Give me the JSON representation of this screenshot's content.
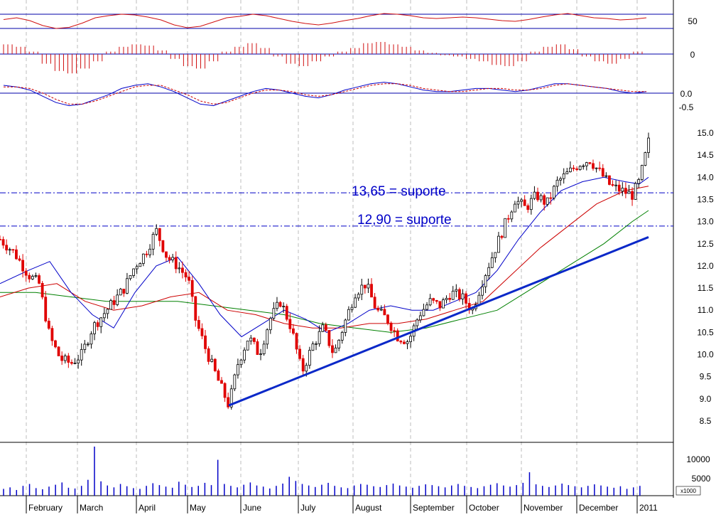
{
  "chart_data": [
    {
      "type": "line",
      "title": "",
      "ylim": [
        0,
        100
      ],
      "y_ticks": [
        "50"
      ],
      "reference_levels": [
        70,
        30
      ],
      "series": [
        {
          "values": [
            55,
            60,
            52,
            38,
            30,
            33,
            45,
            60,
            66,
            70,
            68,
            62,
            54,
            40,
            32,
            36,
            48,
            60,
            64,
            70,
            66,
            58,
            50,
            44,
            40,
            45,
            52,
            58,
            66,
            72,
            70,
            66,
            60,
            58,
            60,
            62,
            60,
            56,
            52,
            50,
            55,
            62,
            68,
            72,
            66,
            60,
            58,
            54,
            56,
            60
          ]
        }
      ]
    },
    {
      "type": "bar",
      "title": "",
      "y_ticks": [
        "0"
      ],
      "values": [
        0.8,
        0.6,
        0.2,
        -0.8,
        -1.4,
        -1.6,
        -1.2,
        -0.6,
        0.2,
        0.6,
        0.8,
        0.7,
        0.3,
        -0.4,
        -1.0,
        -1.2,
        -0.6,
        0.2,
        0.6,
        0.9,
        0.5,
        -0.2,
        -0.8,
        -1.0,
        -0.6,
        -0.2,
        0.2,
        0.5,
        0.9,
        1.0,
        0.8,
        0.6,
        0.3,
        0.1,
        -0.1,
        -0.2,
        -0.4,
        -0.6,
        -0.9,
        -1.0,
        -0.6,
        0.2,
        0.6,
        0.8,
        0.4,
        -0.2,
        -0.6,
        -0.8,
        -0.4,
        0.2
      ]
    },
    {
      "type": "line",
      "title": "",
      "y_ticks": [
        "0.0",
        "-0.5"
      ],
      "series": [
        {
          "values": [
            0.5,
            0.4,
            0.2,
            -0.2,
            -0.6,
            -0.8,
            -0.7,
            -0.4,
            -0.1,
            0.3,
            0.5,
            0.6,
            0.4,
            0.1,
            -0.3,
            -0.7,
            -0.8,
            -0.5,
            -0.2,
            0.1,
            0.3,
            0.2,
            0.0,
            -0.2,
            -0.3,
            -0.1,
            0.2,
            0.4,
            0.6,
            0.7,
            0.6,
            0.4,
            0.2,
            0.1,
            0.1,
            0.2,
            0.3,
            0.3,
            0.2,
            0.1,
            0.2,
            0.4,
            0.6,
            0.6,
            0.5,
            0.4,
            0.3,
            0.1,
            0.0,
            0.1
          ]
        },
        {
          "values": [
            0.4,
            0.4,
            0.3,
            0.0,
            -0.4,
            -0.7,
            -0.7,
            -0.5,
            -0.2,
            0.1,
            0.4,
            0.5,
            0.5,
            0.2,
            -0.1,
            -0.5,
            -0.7,
            -0.6,
            -0.3,
            0.0,
            0.2,
            0.2,
            0.1,
            -0.1,
            -0.2,
            -0.1,
            0.1,
            0.3,
            0.5,
            0.6,
            0.6,
            0.5,
            0.3,
            0.2,
            0.1,
            0.1,
            0.2,
            0.3,
            0.3,
            0.2,
            0.2,
            0.3,
            0.5,
            0.6,
            0.5,
            0.4,
            0.3,
            0.2,
            0.1,
            0.1
          ]
        }
      ]
    },
    {
      "type": "line",
      "title": "",
      "ylim": [
        8.2,
        15.2
      ],
      "y_ticks": [
        "8.5",
        "9.0",
        "9.5",
        "10.0",
        "10.5",
        "11.0",
        "11.5",
        "12.0",
        "12.5",
        "13.0",
        "13.5",
        "14.0",
        "14.5",
        "15.0"
      ],
      "support_lines": [
        {
          "value": 13.65,
          "label": "13,65 = suporte"
        },
        {
          "value": 12.9,
          "label": "12,90 = suporte"
        }
      ],
      "trendline": {
        "x": [
          0.322,
          0.913
        ],
        "y": [
          8.85,
          12.65
        ]
      },
      "price_path": [
        [
          0.0,
          12.6
        ],
        [
          0.02,
          12.3
        ],
        [
          0.04,
          11.8
        ],
        [
          0.055,
          11.6
        ],
        [
          0.07,
          10.4
        ],
        [
          0.085,
          9.9
        ],
        [
          0.1,
          9.8
        ],
        [
          0.115,
          10.0
        ],
        [
          0.13,
          10.6
        ],
        [
          0.145,
          10.9
        ],
        [
          0.16,
          11.2
        ],
        [
          0.175,
          11.5
        ],
        [
          0.19,
          12.0
        ],
        [
          0.205,
          12.3
        ],
        [
          0.22,
          12.8
        ],
        [
          0.235,
          12.2
        ],
        [
          0.25,
          12.0
        ],
        [
          0.265,
          11.7
        ],
        [
          0.275,
          10.8
        ],
        [
          0.29,
          10.1
        ],
        [
          0.305,
          9.5
        ],
        [
          0.322,
          8.85
        ],
        [
          0.335,
          9.8
        ],
        [
          0.35,
          10.4
        ],
        [
          0.365,
          10.0
        ],
        [
          0.38,
          10.8
        ],
        [
          0.395,
          11.2
        ],
        [
          0.41,
          10.6
        ],
        [
          0.425,
          9.6
        ],
        [
          0.44,
          10.2
        ],
        [
          0.455,
          10.6
        ],
        [
          0.47,
          10.0
        ],
        [
          0.485,
          10.7
        ],
        [
          0.5,
          11.4
        ],
        [
          0.515,
          11.6
        ],
        [
          0.53,
          11.0
        ],
        [
          0.545,
          10.8
        ],
        [
          0.56,
          10.4
        ],
        [
          0.575,
          10.3
        ],
        [
          0.59,
          10.9
        ],
        [
          0.605,
          11.2
        ],
        [
          0.62,
          11.1
        ],
        [
          0.635,
          11.4
        ],
        [
          0.65,
          11.3
        ],
        [
          0.665,
          11.0
        ],
        [
          0.68,
          11.7
        ],
        [
          0.695,
          12.3
        ],
        [
          0.71,
          12.9
        ],
        [
          0.725,
          13.5
        ],
        [
          0.74,
          13.3
        ],
        [
          0.755,
          13.6
        ],
        [
          0.77,
          13.4
        ],
        [
          0.785,
          13.9
        ],
        [
          0.8,
          14.1
        ],
        [
          0.815,
          14.3
        ],
        [
          0.83,
          14.4
        ],
        [
          0.845,
          14.1
        ],
        [
          0.86,
          13.8
        ],
        [
          0.875,
          13.7
        ],
        [
          0.89,
          13.6
        ],
        [
          0.9,
          13.9
        ],
        [
          0.913,
          14.8
        ]
      ],
      "ma_blue": [
        [
          0.0,
          11.6
        ],
        [
          0.04,
          11.9
        ],
        [
          0.07,
          12.1
        ],
        [
          0.1,
          11.4
        ],
        [
          0.13,
          10.9
        ],
        [
          0.16,
          10.6
        ],
        [
          0.19,
          11.4
        ],
        [
          0.22,
          12.0
        ],
        [
          0.25,
          12.2
        ],
        [
          0.28,
          11.6
        ],
        [
          0.31,
          10.9
        ],
        [
          0.34,
          10.4
        ],
        [
          0.37,
          10.7
        ],
        [
          0.4,
          11.0
        ],
        [
          0.43,
          10.8
        ],
        [
          0.46,
          10.5
        ],
        [
          0.49,
          10.7
        ],
        [
          0.52,
          11.0
        ],
        [
          0.55,
          11.1
        ],
        [
          0.58,
          11.0
        ],
        [
          0.61,
          11.0
        ],
        [
          0.64,
          11.2
        ],
        [
          0.67,
          11.4
        ],
        [
          0.7,
          11.9
        ],
        [
          0.73,
          12.6
        ],
        [
          0.76,
          13.2
        ],
        [
          0.79,
          13.7
        ],
        [
          0.82,
          13.9
        ],
        [
          0.85,
          14.0
        ],
        [
          0.88,
          13.9
        ],
        [
          0.9,
          13.85
        ],
        [
          0.913,
          14.0
        ]
      ],
      "ma_red": [
        [
          0.0,
          11.3
        ],
        [
          0.04,
          11.5
        ],
        [
          0.08,
          11.6
        ],
        [
          0.12,
          11.2
        ],
        [
          0.16,
          11.0
        ],
        [
          0.2,
          11.1
        ],
        [
          0.24,
          11.3
        ],
        [
          0.28,
          11.4
        ],
        [
          0.32,
          11.0
        ],
        [
          0.36,
          10.9
        ],
        [
          0.4,
          10.7
        ],
        [
          0.44,
          10.6
        ],
        [
          0.48,
          10.6
        ],
        [
          0.52,
          10.7
        ],
        [
          0.56,
          10.7
        ],
        [
          0.6,
          10.8
        ],
        [
          0.64,
          11.0
        ],
        [
          0.68,
          11.2
        ],
        [
          0.72,
          11.8
        ],
        [
          0.76,
          12.4
        ],
        [
          0.8,
          12.9
        ],
        [
          0.84,
          13.4
        ],
        [
          0.88,
          13.7
        ],
        [
          0.913,
          13.8
        ]
      ],
      "ma_green": [
        [
          0.0,
          11.4
        ],
        [
          0.05,
          11.4
        ],
        [
          0.1,
          11.3
        ],
        [
          0.15,
          11.2
        ],
        [
          0.2,
          11.2
        ],
        [
          0.25,
          11.2
        ],
        [
          0.3,
          11.1
        ],
        [
          0.35,
          11.0
        ],
        [
          0.4,
          10.9
        ],
        [
          0.45,
          10.7
        ],
        [
          0.5,
          10.6
        ],
        [
          0.55,
          10.5
        ],
        [
          0.6,
          10.6
        ],
        [
          0.65,
          10.8
        ],
        [
          0.7,
          11.0
        ],
        [
          0.75,
          11.5
        ],
        [
          0.8,
          12.0
        ],
        [
          0.85,
          12.5
        ],
        [
          0.89,
          13.0
        ],
        [
          0.913,
          13.25
        ]
      ]
    },
    {
      "type": "bar",
      "title": "",
      "y_ticks": [
        "10000",
        "5000"
      ],
      "y_unit": "x1000",
      "ylim": [
        0,
        13000
      ],
      "values": [
        1800,
        2200,
        1500,
        2600,
        3100,
        2000,
        1700,
        2400,
        2900,
        3500,
        2100,
        1900,
        2600,
        4200,
        13000,
        3800,
        2700,
        2200,
        3100,
        2500,
        2000,
        1800,
        2600,
        3300,
        2800,
        2400,
        2100,
        3700,
        2900,
        2300,
        2600,
        3400,
        2800,
        9500,
        3100,
        2600,
        2200,
        2900,
        3500,
        2700,
        2400,
        1900,
        2600,
        3200,
        5000,
        3900,
        3100,
        2700,
        2300,
        2900,
        3400,
        2600,
        2200,
        2000,
        2700,
        3100,
        2900,
        2500,
        2300,
        2800,
        3200,
        2700,
        2400,
        2100,
        2600,
        3000,
        2800,
        2500,
        2200,
        2700,
        3100,
        2600,
        2300,
        2000,
        2500,
        2900,
        3300,
        2700,
        2400,
        2800,
        3400,
        6200,
        3000,
        2600,
        2300,
        2700,
        3200,
        2800,
        2500,
        2200,
        2600,
        3000,
        2700,
        2400,
        2100,
        2500,
        1800,
        2200,
        2600
      ]
    }
  ],
  "months": [
    {
      "label": "February"
    },
    {
      "label": "March"
    },
    {
      "label": "April"
    },
    {
      "label": "May"
    },
    {
      "label": "June"
    },
    {
      "label": "July"
    },
    {
      "label": "August"
    },
    {
      "label": "September"
    },
    {
      "label": "October"
    },
    {
      "label": "November"
    },
    {
      "label": "December"
    },
    {
      "label": "2011"
    }
  ],
  "colors": {
    "price_up": "#000000",
    "price_down": "#e00000",
    "ma_blue": "#0000c8",
    "ma_red": "#cc0000",
    "ma_green": "#008000",
    "trendline": "#0a28c8",
    "support": "#0000c8",
    "grid": "#bdbdbd",
    "oscillator": "#d01010",
    "panel_line": "#0000aa"
  }
}
